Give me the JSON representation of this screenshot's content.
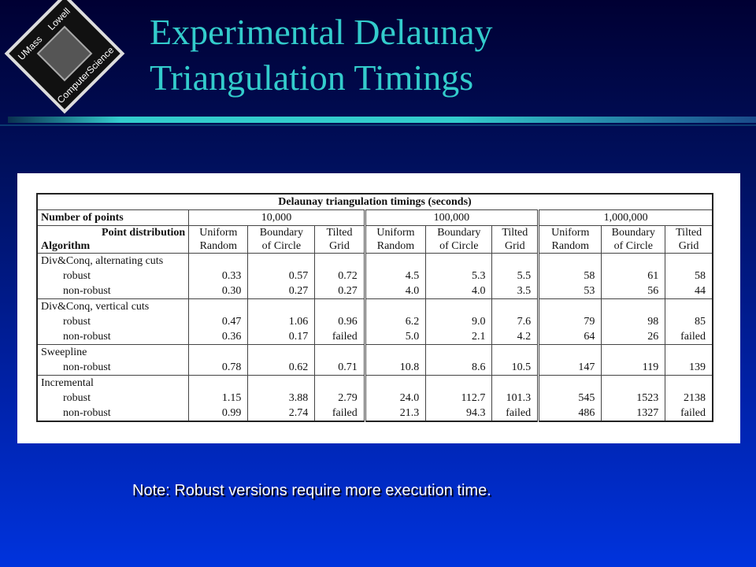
{
  "logo": {
    "top_left": "UMass",
    "top_right": "Lowell",
    "bottom_left": "Computer",
    "bottom_right": "Science"
  },
  "title": [
    "Experimental Delaunay",
    "Triangulation Timings"
  ],
  "table": {
    "caption": "Delaunay triangulation timings (seconds)",
    "points_label": "Number of points",
    "point_counts": [
      "10,000",
      "100,000",
      "1,000,000"
    ],
    "distribution_label": "Point distribution",
    "algorithm_label": "Algorithm",
    "distributions": [
      [
        "Uniform",
        "Random"
      ],
      [
        "Boundary",
        "of Circle"
      ],
      [
        "Tilted",
        "Grid"
      ]
    ],
    "groups": [
      {
        "name": "Div&Conq, alternating cuts",
        "rows": [
          {
            "label": "robust",
            "values": [
              "0.33",
              "0.57",
              "0.72",
              "4.5",
              "5.3",
              "5.5",
              "58",
              "61",
              "58"
            ]
          },
          {
            "label": "non-robust",
            "values": [
              "0.30",
              "0.27",
              "0.27",
              "4.0",
              "4.0",
              "3.5",
              "53",
              "56",
              "44"
            ]
          }
        ]
      },
      {
        "name": "Div&Conq, vertical cuts",
        "rows": [
          {
            "label": "robust",
            "values": [
              "0.47",
              "1.06",
              "0.96",
              "6.2",
              "9.0",
              "7.6",
              "79",
              "98",
              "85"
            ]
          },
          {
            "label": "non-robust",
            "values": [
              "0.36",
              "0.17",
              "failed",
              "5.0",
              "2.1",
              "4.2",
              "64",
              "26",
              "failed"
            ]
          }
        ]
      },
      {
        "name": "Sweepline",
        "rows": [
          {
            "label": "non-robust",
            "values": [
              "0.78",
              "0.62",
              "0.71",
              "10.8",
              "8.6",
              "10.5",
              "147",
              "119",
              "139"
            ]
          }
        ]
      },
      {
        "name": "Incremental",
        "rows": [
          {
            "label": "robust",
            "values": [
              "1.15",
              "3.88",
              "2.79",
              "24.0",
              "112.7",
              "101.3",
              "545",
              "1523",
              "2138"
            ]
          },
          {
            "label": "non-robust",
            "values": [
              "0.99",
              "2.74",
              "failed",
              "21.3",
              "94.3",
              "failed",
              "486",
              "1327",
              "failed"
            ]
          }
        ]
      }
    ]
  },
  "note": "Note: Robust versions require more execution time."
}
